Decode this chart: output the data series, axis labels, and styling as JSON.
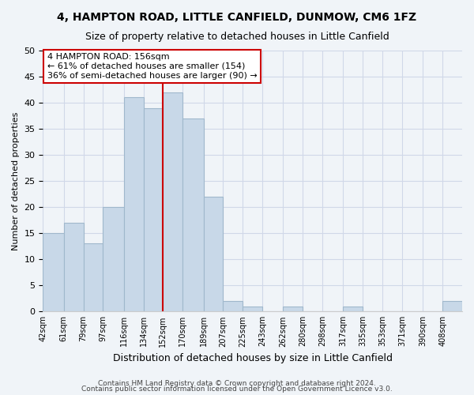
{
  "title": "4, HAMPTON ROAD, LITTLE CANFIELD, DUNMOW, CM6 1FZ",
  "subtitle": "Size of property relative to detached houses in Little Canfield",
  "xlabel": "Distribution of detached houses by size in Little Canfield",
  "ylabel": "Number of detached properties",
  "bin_labels": [
    "42sqm",
    "61sqm",
    "79sqm",
    "97sqm",
    "116sqm",
    "134sqm",
    "152sqm",
    "170sqm",
    "189sqm",
    "207sqm",
    "225sqm",
    "243sqm",
    "262sqm",
    "280sqm",
    "298sqm",
    "317sqm",
    "335sqm",
    "353sqm",
    "371sqm",
    "390sqm",
    "408sqm"
  ],
  "bar_heights": [
    15,
    17,
    13,
    20,
    41,
    39,
    42,
    37,
    22,
    2,
    1,
    0,
    1,
    0,
    0,
    1,
    0,
    0,
    0,
    0,
    2
  ],
  "bar_color": "#c8d8e8",
  "bar_edgecolor": "#a0b8cc",
  "grid_color": "#d0d8e8",
  "background_color": "#f0f4f8",
  "vline_color": "#cc0000",
  "annotation_text": "4 HAMPTON ROAD: 156sqm\n← 61% of detached houses are smaller (154)\n36% of semi-detached houses are larger (90) →",
  "annotation_box_edgecolor": "#cc0000",
  "annotation_box_facecolor": "#ffffff",
  "footer1": "Contains HM Land Registry data © Crown copyright and database right 2024.",
  "footer2": "Contains public sector information licensed under the Open Government Licence v3.0.",
  "ylim": [
    0,
    50
  ],
  "bin_edges": [
    42,
    61,
    79,
    97,
    116,
    134,
    152,
    170,
    189,
    207,
    225,
    243,
    262,
    280,
    298,
    317,
    335,
    353,
    371,
    390,
    408,
    426
  ],
  "vline_bin_index": 6,
  "title_fontsize": 10,
  "subtitle_fontsize": 9
}
